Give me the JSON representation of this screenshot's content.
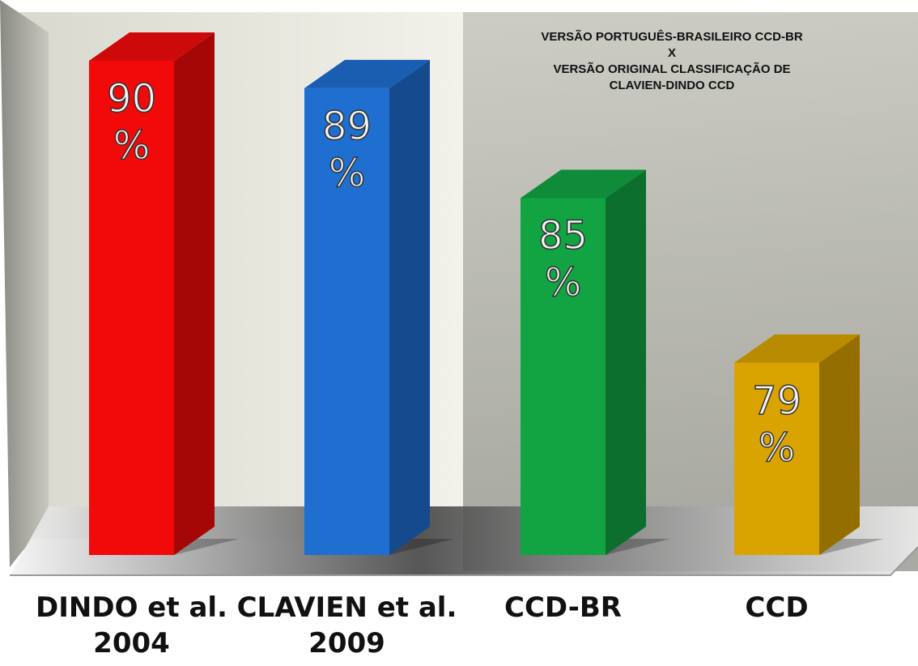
{
  "chart_data": {
    "type": "bar3d",
    "annotation": "VERSÃO PORTUGUÊS-BRASILEIRO CCD-BR\nX\nVERSÃO ORIGINAL CLASSIFICAÇÃO DE\nCLAVIEN-DINDO CCD",
    "categories": [
      "DINDO et al.\n2004",
      "CLAVIEN et al.\n2009",
      "CCD-BR",
      "CCD"
    ],
    "values": [
      90,
      89,
      85,
      79
    ],
    "value_labels": [
      "90\n%",
      "89\n%",
      "85\n%",
      "79\n%"
    ],
    "colors": [
      "#f20a0a",
      "#1f6fd0",
      "#12a343",
      "#d9a300"
    ],
    "ylim": [
      72,
      90
    ]
  }
}
